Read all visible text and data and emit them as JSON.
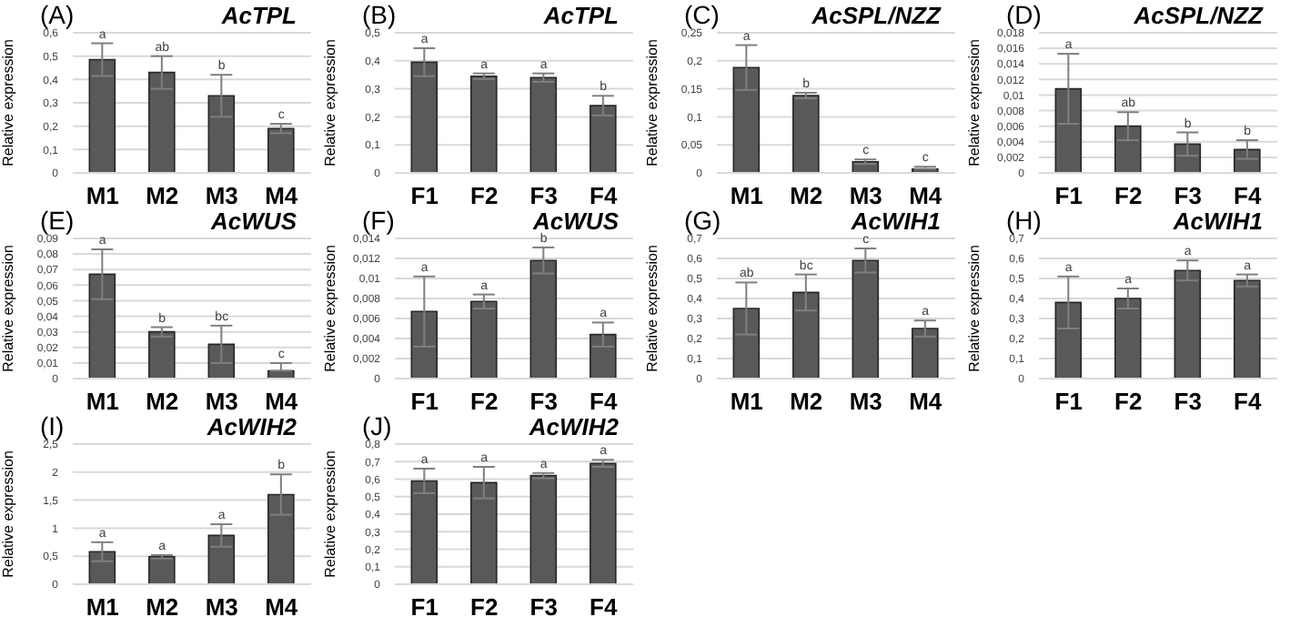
{
  "chart_data": [
    {
      "type": "bar",
      "title": "(A)",
      "subtitle": "AcTPL",
      "ylabel": "Relative expression",
      "categories": [
        "M1",
        "M2",
        "M3",
        "M4"
      ],
      "values": [
        0.485,
        0.43,
        0.33,
        0.19
      ],
      "errors": [
        0.07,
        0.07,
        0.09,
        0.02
      ],
      "color": "#595959",
      "ylim": [
        0,
        0.6
      ],
      "yticks": [
        {
          "value": 0,
          "label": "0"
        },
        {
          "value": 0.1,
          "label": "0,1"
        },
        {
          "value": 0.2,
          "label": "0,2"
        },
        {
          "value": 0.3,
          "label": "0,3"
        },
        {
          "value": 0.4,
          "label": "0,4"
        },
        {
          "value": 0.5,
          "label": "0,5"
        },
        {
          "value": 0.6,
          "label": "0,6"
        }
      ],
      "grid": "y",
      "annotations": [
        "a",
        "ab",
        "b",
        "c"
      ]
    },
    {
      "type": "bar",
      "title": "(B)",
      "subtitle": "AcTPL",
      "ylabel": "Relative expression",
      "categories": [
        "F1",
        "F2",
        "F3",
        "F4"
      ],
      "values": [
        0.395,
        0.345,
        0.34,
        0.24
      ],
      "errors": [
        0.05,
        0.01,
        0.015,
        0.035
      ],
      "color": "#595959",
      "ylim": [
        0,
        0.5
      ],
      "yticks": [
        {
          "value": 0,
          "label": "0"
        },
        {
          "value": 0.1,
          "label": "0,1"
        },
        {
          "value": 0.2,
          "label": "0,2"
        },
        {
          "value": 0.3,
          "label": "0,3"
        },
        {
          "value": 0.4,
          "label": "0,4"
        },
        {
          "value": 0.5,
          "label": "0,5"
        }
      ],
      "grid": "y",
      "annotations": [
        "a",
        "a",
        "a",
        "b"
      ]
    },
    {
      "type": "bar",
      "title": "(C)",
      "subtitle": "AcSPL/NZZ",
      "ylabel": "Relative expression",
      "categories": [
        "M1",
        "M2",
        "M3",
        "M4"
      ],
      "values": [
        0.188,
        0.138,
        0.02,
        0.007
      ],
      "errors": [
        0.04,
        0.005,
        0.004,
        [
          0.007,
          0.011
        ]
      ],
      "color": "#595959",
      "ylim": [
        0,
        0.25
      ],
      "yticks": [
        {
          "value": 0,
          "label": "0"
        },
        {
          "value": 0.05,
          "label": "0,05"
        },
        {
          "value": 0.1,
          "label": "0,1"
        },
        {
          "value": 0.15,
          "label": "0,15"
        },
        {
          "value": 0.2,
          "label": "0,2"
        },
        {
          "value": 0.25,
          "label": "0,25"
        }
      ],
      "grid": "y",
      "annotations": [
        "a",
        "b",
        "c",
        "c"
      ]
    },
    {
      "type": "bar",
      "title": "(D)",
      "subtitle": "AcSPL/NZZ",
      "ylabel": "Relative expression",
      "categories": [
        "F1",
        "F2",
        "F3",
        "F4"
      ],
      "values": [
        0.0108,
        0.006,
        0.0037,
        0.003
      ],
      "errors": [
        0.0045,
        0.0018,
        0.0015,
        0.0012
      ],
      "color": "#595959",
      "ylim": [
        0,
        0.018
      ],
      "yticks": [
        {
          "value": 0,
          "label": "0"
        },
        {
          "value": 0.002,
          "label": "0,002"
        },
        {
          "value": 0.004,
          "label": "0,004"
        },
        {
          "value": 0.006,
          "label": "0,006"
        },
        {
          "value": 0.008,
          "label": "0,008"
        },
        {
          "value": 0.01,
          "label": "0,01"
        },
        {
          "value": 0.012,
          "label": "0,012"
        },
        {
          "value": 0.014,
          "label": "0,014"
        },
        {
          "value": 0.016,
          "label": "0,016"
        },
        {
          "value": 0.018,
          "label": "0,018"
        }
      ],
      "grid": "y",
      "annotations": [
        "a",
        "ab",
        "b",
        "b"
      ]
    },
    {
      "type": "bar",
      "title": "(E)",
      "subtitle": "AcWUS",
      "ylabel": "Relative expression",
      "categories": [
        "M1",
        "M2",
        "M3",
        "M4"
      ],
      "values": [
        0.067,
        0.03,
        0.022,
        0.005
      ],
      "errors": [
        0.016,
        0.003,
        0.012,
        [
          0.005,
          0.01
        ]
      ],
      "color": "#595959",
      "ylim": [
        0,
        0.09
      ],
      "yticks": [
        {
          "value": 0,
          "label": "0"
        },
        {
          "value": 0.01,
          "label": "0,01"
        },
        {
          "value": 0.02,
          "label": "0,02"
        },
        {
          "value": 0.03,
          "label": "0,03"
        },
        {
          "value": 0.04,
          "label": "0,04"
        },
        {
          "value": 0.05,
          "label": "0,05"
        },
        {
          "value": 0.06,
          "label": "0,06"
        },
        {
          "value": 0.07,
          "label": "0,07"
        },
        {
          "value": 0.08,
          "label": "0,08"
        },
        {
          "value": 0.09,
          "label": "0,09"
        }
      ],
      "grid": "y",
      "annotations": [
        "a",
        "b",
        "bc",
        "c"
      ]
    },
    {
      "type": "bar",
      "title": "(F)",
      "subtitle": "AcWUS",
      "ylabel": "Relative expression",
      "categories": [
        "F1",
        "F2",
        "F3",
        "F4"
      ],
      "values": [
        0.0067,
        0.0077,
        0.0118,
        0.0044
      ],
      "errors": [
        0.0035,
        0.0007,
        0.0013,
        0.0012
      ],
      "color": "#595959",
      "ylim": [
        0,
        0.014
      ],
      "yticks": [
        {
          "value": 0,
          "label": "0"
        },
        {
          "value": 0.002,
          "label": "0,002"
        },
        {
          "value": 0.004,
          "label": "0,004"
        },
        {
          "value": 0.006,
          "label": "0,006"
        },
        {
          "value": 0.008,
          "label": "0,008"
        },
        {
          "value": 0.01,
          "label": "0,01"
        },
        {
          "value": 0.012,
          "label": "0,012"
        },
        {
          "value": 0.014,
          "label": "0,014"
        }
      ],
      "grid": "y",
      "annotations": [
        "a",
        "a",
        "b",
        "a"
      ]
    },
    {
      "type": "bar",
      "title": "(G)",
      "subtitle": "AcWIH1",
      "ylabel": "Relative expression",
      "categories": [
        "M1",
        "M2",
        "M3",
        "M4"
      ],
      "values": [
        0.35,
        0.43,
        0.59,
        0.25
      ],
      "errors": [
        0.13,
        0.09,
        0.06,
        0.04
      ],
      "color": "#595959",
      "ylim": [
        0,
        0.7
      ],
      "yticks": [
        {
          "value": 0,
          "label": "0"
        },
        {
          "value": 0.1,
          "label": "0,1"
        },
        {
          "value": 0.2,
          "label": "0,2"
        },
        {
          "value": 0.3,
          "label": "0,3"
        },
        {
          "value": 0.4,
          "label": "0,4"
        },
        {
          "value": 0.5,
          "label": "0,5"
        },
        {
          "value": 0.6,
          "label": "0,6"
        },
        {
          "value": 0.7,
          "label": "0,7"
        }
      ],
      "grid": "y",
      "annotations": [
        "ab",
        "bc",
        "c",
        "a"
      ]
    },
    {
      "type": "bar",
      "title": "(H)",
      "subtitle": "AcWIH1",
      "ylabel": "Relative expression",
      "categories": [
        "F1",
        "F2",
        "F3",
        "F4"
      ],
      "values": [
        0.38,
        0.4,
        0.54,
        0.49
      ],
      "errors": [
        0.13,
        0.05,
        0.05,
        0.03
      ],
      "color": "#595959",
      "ylim": [
        0,
        0.7
      ],
      "yticks": [
        {
          "value": 0,
          "label": "0"
        },
        {
          "value": 0.1,
          "label": "0,1"
        },
        {
          "value": 0.2,
          "label": "0,2"
        },
        {
          "value": 0.3,
          "label": "0,3"
        },
        {
          "value": 0.4,
          "label": "0,4"
        },
        {
          "value": 0.5,
          "label": "0,5"
        },
        {
          "value": 0.6,
          "label": "0,6"
        },
        {
          "value": 0.7,
          "label": "0,7"
        }
      ],
      "grid": "y",
      "annotations": [
        "a",
        "a",
        "a",
        "a"
      ]
    },
    {
      "type": "bar",
      "title": "(I)",
      "subtitle": "AcWIH2",
      "ylabel": "Relative expression",
      "categories": [
        "M1",
        "M2",
        "M3",
        "M4"
      ],
      "values": [
        0.58,
        0.49,
        0.87,
        1.6
      ],
      "errors": [
        0.17,
        0.03,
        0.2,
        0.36
      ],
      "color": "#595959",
      "ylim": [
        0,
        2.5
      ],
      "yticks": [
        {
          "value": 0,
          "label": "0"
        },
        {
          "value": 0.5,
          "label": "0,5"
        },
        1,
        {
          "value": 1.5,
          "label": "1,5"
        },
        2,
        {
          "value": 2.5,
          "label": "2,5"
        }
      ],
      "grid": "y",
      "annotations": [
        "a",
        "a",
        "a",
        "b"
      ]
    },
    {
      "type": "bar",
      "title": "(J)",
      "subtitle": "AcWIH2",
      "ylabel": "Relative expression",
      "categories": [
        "F1",
        "F2",
        "F3",
        "F4"
      ],
      "values": [
        0.59,
        0.58,
        0.62,
        0.69
      ],
      "errors": [
        0.07,
        0.09,
        0.015,
        0.02
      ],
      "color": "#595959",
      "ylim": [
        0,
        0.8
      ],
      "yticks": [
        {
          "value": 0,
          "label": "0"
        },
        {
          "value": 0.1,
          "label": "0,1"
        },
        {
          "value": 0.2,
          "label": "0,2"
        },
        {
          "value": 0.3,
          "label": "0,3"
        },
        {
          "value": 0.4,
          "label": "0,4"
        },
        {
          "value": 0.5,
          "label": "0,5"
        },
        {
          "value": 0.6,
          "label": "0,6"
        },
        {
          "value": 0.7,
          "label": "0,7"
        },
        {
          "value": 0.8,
          "label": "0,8"
        }
      ],
      "grid": "y",
      "annotations": [
        "a",
        "a",
        "a",
        "a"
      ]
    }
  ]
}
